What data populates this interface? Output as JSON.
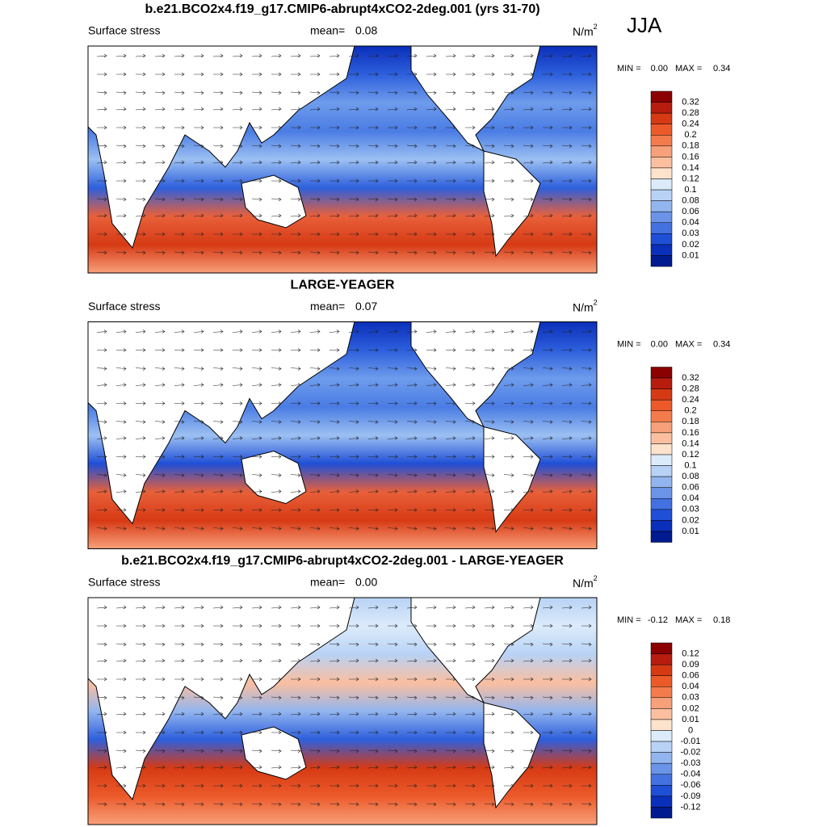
{
  "season": "JJA",
  "panels": [
    {
      "title": "b.e21.BCO2x4.f19_g17.CMIP6-abrupt4xCO2-2deg.001 (yrs 31-70)",
      "left_label": "Surface stress",
      "mean_label": "mean=",
      "mean": "0.08",
      "units": "N/m",
      "units_sup": "2",
      "min_label": "MIN =",
      "min": "0.00",
      "max_label": "MAX =",
      "max": "0.34",
      "colorbar": {
        "labels": [
          "0.32",
          "0.28",
          "0.24",
          "0.2",
          "0.18",
          "0.16",
          "0.14",
          "0.12",
          "0.1",
          "0.08",
          "0.06",
          "0.04",
          "0.03",
          "0.02",
          "0.01"
        ],
        "colors": [
          "#8b0000",
          "#b81c0e",
          "#d63a14",
          "#ec5a2a",
          "#f47c4c",
          "#f8a07a",
          "#fbbf9f",
          "#fde2cc",
          "#dcebfa",
          "#b8d2f5",
          "#93b5ef",
          "#6b94e8",
          "#4471e0",
          "#1f4fd6",
          "#0a2fba",
          "#001a8f"
        ]
      },
      "field": [
        "#0a2fba",
        "#2d5fdc",
        "#6e9cec",
        "#4a7ce4",
        "#9cc0f2",
        "#2d5fdc",
        "#e8603a",
        "#d63a14",
        "#f8a07a"
      ]
    },
    {
      "title": "LARGE-YEAGER",
      "left_label": "Surface stress",
      "mean_label": "mean=",
      "mean": "0.07",
      "units": "N/m",
      "units_sup": "2",
      "min_label": "MIN =",
      "min": "0.00",
      "max_label": "MAX =",
      "max": "0.34",
      "colorbar": {
        "labels": [
          "0.32",
          "0.28",
          "0.24",
          "0.2",
          "0.18",
          "0.16",
          "0.14",
          "0.12",
          "0.1",
          "0.08",
          "0.06",
          "0.04",
          "0.03",
          "0.02",
          "0.01"
        ],
        "colors": [
          "#8b0000",
          "#b81c0e",
          "#d63a14",
          "#ec5a2a",
          "#f47c4c",
          "#f8a07a",
          "#fbbf9f",
          "#fde2cc",
          "#dcebfa",
          "#b8d2f5",
          "#93b5ef",
          "#6b94e8",
          "#4471e0",
          "#1f4fd6",
          "#0a2fba",
          "#001a8f"
        ]
      },
      "field": [
        "#0a2fba",
        "#2d5fdc",
        "#6e9cec",
        "#4a7ce4",
        "#9cc0f2",
        "#1f4fd6",
        "#e8603a",
        "#d63a14",
        "#f8a07a"
      ]
    },
    {
      "title": "b.e21.BCO2x4.f19_g17.CMIP6-abrupt4xCO2-2deg.001 - LARGE-YEAGER",
      "left_label": "Surface stress",
      "mean_label": "mean=",
      "mean": "0.00",
      "units": "N/m",
      "units_sup": "2",
      "min_label": "MIN =",
      "min": "-0.12",
      "max_label": "MAX =",
      "max": "0.18",
      "colorbar": {
        "labels": [
          "0.12",
          "0.09",
          "0.06",
          "0.04",
          "0.03",
          "0.02",
          "0.01",
          "0",
          "-0.01",
          "-0.02",
          "-0.03",
          "-0.04",
          "-0.06",
          "-0.09",
          "-0.12"
        ],
        "colors": [
          "#8b0000",
          "#b81c0e",
          "#d63a14",
          "#ec5a2a",
          "#f47c4c",
          "#f8a07a",
          "#fbbf9f",
          "#fde2cc",
          "#dcebfa",
          "#b8d2f5",
          "#93b5ef",
          "#6b94e8",
          "#4471e0",
          "#1f4fd6",
          "#0a2fba",
          "#001a8f"
        ]
      },
      "field": [
        "#b8d2f5",
        "#dcebfa",
        "#b8d2f5",
        "#fbbf9f",
        "#93b5ef",
        "#2d5fdc",
        "#d63a14",
        "#ec5a2a",
        "#f8a07a"
      ]
    }
  ]
}
